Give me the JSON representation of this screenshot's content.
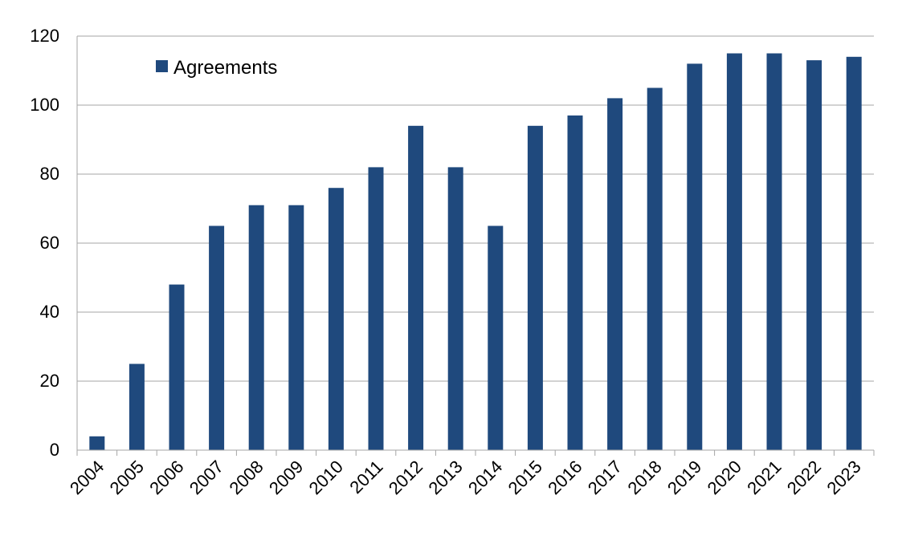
{
  "chart_data": {
    "type": "bar",
    "categories": [
      "2004",
      "2005",
      "2006",
      "2007",
      "2008",
      "2009",
      "2010",
      "2011",
      "2012",
      "2013",
      "2014",
      "2015",
      "2016",
      "2017",
      "2018",
      "2019",
      "2020",
      "2021",
      "2022",
      "2023"
    ],
    "series": [
      {
        "name": "Agreements",
        "color": "#1f497d",
        "values": [
          4,
          25,
          48,
          65,
          71,
          71,
          76,
          82,
          94,
          82,
          65,
          94,
          97,
          102,
          105,
          112,
          115,
          115,
          113,
          114
        ]
      }
    ],
    "ylim": [
      0,
      120
    ],
    "yticks": [
      "0",
      "20",
      "40",
      "60",
      "80",
      "100",
      "120"
    ],
    "grid": true,
    "legend_position": "top-left",
    "title": "",
    "xlabel": "",
    "ylabel": ""
  }
}
